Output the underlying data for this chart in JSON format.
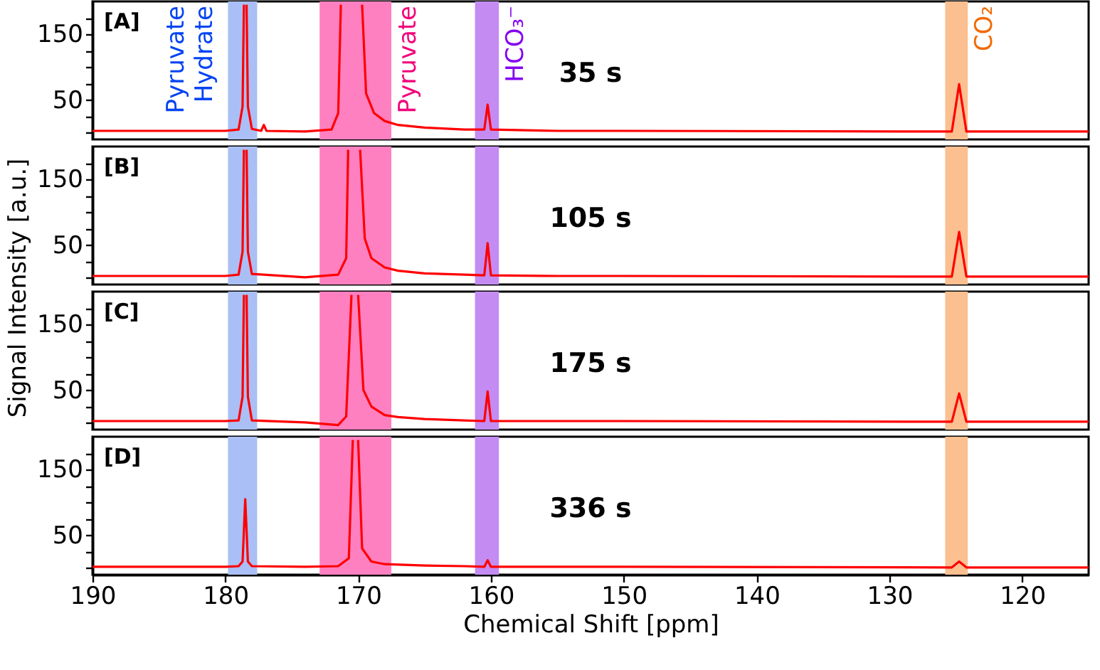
{
  "chart_data": [
    {
      "type": "line",
      "xlim": [
        190,
        115
      ],
      "ylim": [
        -10,
        200
      ],
      "xticks": [
        190,
        180,
        170,
        160,
        150,
        140,
        130,
        120
      ],
      "yticks": [
        {
          "value": 0,
          "label": null
        },
        {
          "value": 25,
          "label": null
        },
        50,
        {
          "value": 75,
          "label": null
        },
        {
          "value": 100,
          "label": null
        },
        {
          "value": 125,
          "label": null
        },
        150,
        {
          "value": 175,
          "label": null
        }
      ],
      "tick_labels": "y",
      "grid": false,
      "legend": false,
      "x": [
        190,
        180,
        179,
        178.7,
        178.6,
        178.5,
        178.4,
        178.3,
        178,
        177.3,
        177.1,
        176.9,
        174,
        172,
        171.5,
        171.3,
        170.5,
        169.7,
        169.4,
        168.8,
        168,
        167,
        165,
        162,
        160.5,
        160.25,
        160.0,
        155,
        150,
        125.3,
        124.75,
        124.2,
        115
      ],
      "series": [
        {
          "color": "#ff0000",
          "values": [
            3,
            3,
            5,
            40,
            195,
            null,
            195,
            40,
            6,
            3,
            12,
            3,
            2,
            5,
            30,
            195,
            null,
            195,
            60,
            30,
            18,
            12,
            8,
            5,
            5,
            43,
            5,
            3,
            3,
            2,
            74,
            2,
            2
          ]
        }
      ],
      "bands": [
        {
          "axis": "x",
          "from": 177.6,
          "to": 179.8,
          "label": "Pyruvate\nHydrate",
          "color": "#aabff5"
        },
        {
          "axis": "x",
          "from": 172.9,
          "to": 167.5,
          "label": "Pyruvate",
          "color": "#ff80c0"
        },
        {
          "axis": "x",
          "from": 161.2,
          "to": 159.4,
          "label": "HCO₃⁻",
          "color": "#c48cf2"
        },
        {
          "axis": "x",
          "from": 125.8,
          "to": 124.1,
          "label": "CO₂",
          "color": "#fbbf90"
        }
      ],
      "annotations": [
        "[A]",
        "35 s"
      ]
    },
    {
      "type": "line",
      "xlim": [
        190,
        115
      ],
      "ylim": [
        -10,
        200
      ],
      "xticks": [
        190,
        180,
        170,
        160,
        150,
        140,
        130,
        120
      ],
      "yticks": [
        {
          "value": 0,
          "label": null
        },
        {
          "value": 25,
          "label": null
        },
        50,
        {
          "value": 75,
          "label": null
        },
        {
          "value": 100,
          "label": null
        },
        {
          "value": 125,
          "label": null
        },
        150,
        {
          "value": 175,
          "label": null
        }
      ],
      "tick_labels": "y",
      "grid": false,
      "legend": false,
      "ylabel": "Signal Intensity [a.u.]",
      "x": [
        190,
        180,
        179,
        178.7,
        178.6,
        178.5,
        178.4,
        178.3,
        178,
        174,
        171.5,
        170.9,
        170.75,
        170.3,
        169.85,
        169.5,
        169,
        168,
        167,
        165,
        162,
        160.5,
        160.25,
        160.0,
        155,
        150,
        125.3,
        124.75,
        124.2,
        115
      ],
      "series": [
        {
          "color": "#ff0000",
          "values": [
            3,
            3,
            5,
            40,
            195,
            null,
            195,
            40,
            6,
            1,
            5,
            30,
            195,
            null,
            195,
            60,
            30,
            16,
            11,
            7,
            5,
            4,
            53,
            4,
            3,
            3,
            2,
            70,
            2,
            2
          ]
        }
      ],
      "bands": [
        {
          "axis": "x",
          "from": 177.6,
          "to": 179.8,
          "color": "#aabff5"
        },
        {
          "axis": "x",
          "from": 172.9,
          "to": 167.5,
          "color": "#ff80c0"
        },
        {
          "axis": "x",
          "from": 161.2,
          "to": 159.4,
          "color": "#c48cf2"
        },
        {
          "axis": "x",
          "from": 125.8,
          "to": 124.1,
          "color": "#fbbf90"
        }
      ],
      "annotations": [
        "[B]",
        "105 s"
      ]
    },
    {
      "type": "line",
      "xlim": [
        190,
        115
      ],
      "ylim": [
        -10,
        200
      ],
      "xticks": [
        190,
        180,
        170,
        160,
        150,
        140,
        130,
        120
      ],
      "yticks": [
        {
          "value": 0,
          "label": null
        },
        {
          "value": 25,
          "label": null
        },
        50,
        {
          "value": 75,
          "label": null
        },
        {
          "value": 100,
          "label": null
        },
        {
          "value": 125,
          "label": null
        },
        150,
        {
          "value": 175,
          "label": null
        }
      ],
      "tick_labels": "y",
      "grid": false,
      "legend": false,
      "x": [
        190,
        180,
        179,
        178.7,
        178.6,
        178.5,
        178.4,
        178.3,
        178,
        174,
        171.5,
        170.9,
        170.5,
        170.25,
        170.0,
        169.6,
        169,
        168,
        167,
        165,
        162,
        160.5,
        160.25,
        160.0,
        155,
        150,
        125.3,
        124.75,
        124.2,
        115
      ],
      "series": [
        {
          "color": "#ff0000",
          "values": [
            3,
            3,
            4,
            40,
            195,
            null,
            195,
            40,
            4,
            1,
            -3,
            10,
            195,
            null,
            195,
            50,
            25,
            12,
            9,
            6,
            4,
            3,
            48,
            3,
            3,
            3,
            2,
            45,
            2,
            2
          ]
        }
      ],
      "bands": [
        {
          "axis": "x",
          "from": 177.6,
          "to": 179.8,
          "color": "#aabff5"
        },
        {
          "axis": "x",
          "from": 172.9,
          "to": 167.5,
          "color": "#ff80c0"
        },
        {
          "axis": "x",
          "from": 161.2,
          "to": 159.4,
          "color": "#c48cf2"
        },
        {
          "axis": "x",
          "from": 125.8,
          "to": 124.1,
          "color": "#fbbf90"
        }
      ],
      "annotations": [
        "[C]",
        "175 s"
      ]
    },
    {
      "type": "line",
      "xlim": [
        190,
        115
      ],
      "ylim": [
        -10,
        200
      ],
      "xticks": [
        190,
        180,
        170,
        160,
        150,
        140,
        130,
        120
      ],
      "yticks": [
        {
          "value": 0,
          "label": null
        },
        {
          "value": 25,
          "label": null
        },
        50,
        {
          "value": 75,
          "label": null
        },
        {
          "value": 100,
          "label": null
        },
        {
          "value": 125,
          "label": null
        },
        150,
        {
          "value": 175,
          "label": null
        }
      ],
      "grid": false,
      "legend": false,
      "xlabel": "Chemical Shift [ppm]",
      "x": [
        190,
        180,
        179,
        178.7,
        178.5,
        178.3,
        178,
        174,
        171.5,
        170.7,
        170.4,
        170.2,
        170.0,
        169.7,
        169,
        168,
        165,
        162,
        160.5,
        160.25,
        160.0,
        155,
        150,
        125.3,
        124.75,
        124.2,
        115
      ],
      "series": [
        {
          "color": "#ff0000",
          "values": [
            2,
            2,
            3,
            10,
            105,
            10,
            3,
            2,
            3,
            15,
            195,
            null,
            195,
            30,
            10,
            6,
            4,
            3,
            2,
            12,
            2,
            2,
            2,
            1,
            10,
            1,
            1
          ]
        }
      ],
      "bands": [
        {
          "axis": "x",
          "from": 177.6,
          "to": 179.8,
          "color": "#aabff5"
        },
        {
          "axis": "x",
          "from": 172.9,
          "to": 167.5,
          "color": "#ff80c0"
        },
        {
          "axis": "x",
          "from": 161.2,
          "to": 159.4,
          "color": "#c48cf2"
        },
        {
          "axis": "x",
          "from": 125.8,
          "to": 124.1,
          "color": "#fbbf90"
        }
      ],
      "annotations": [
        "[D]",
        "336 s"
      ]
    }
  ]
}
